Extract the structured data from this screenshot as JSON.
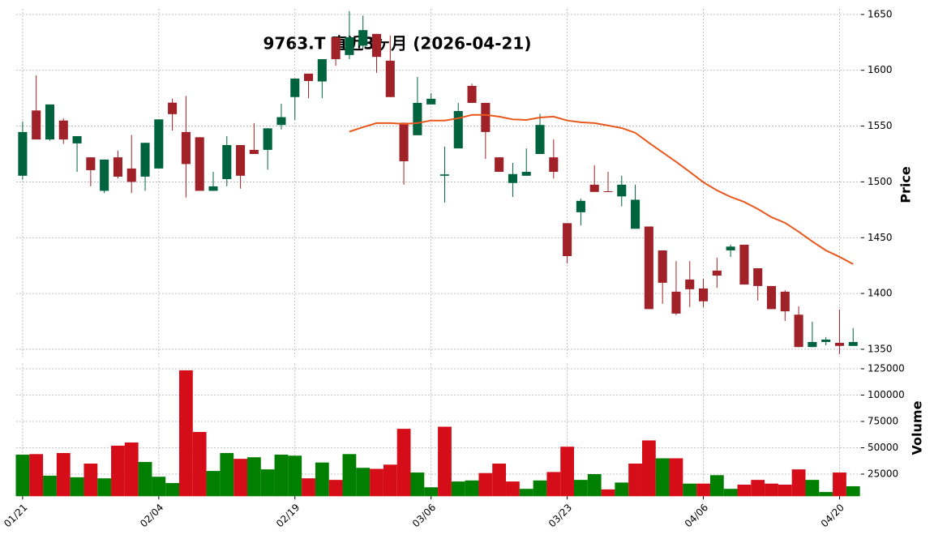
{
  "chart_data": {
    "type": "candlestick",
    "title": "9763.T  直近3ヶ月 (2026-04-21)",
    "categories": [
      "01/21",
      null,
      null,
      null,
      null,
      null,
      null,
      null,
      null,
      null,
      "02/04",
      null,
      null,
      null,
      null,
      null,
      null,
      null,
      null,
      null,
      "02/19",
      null,
      null,
      null,
      null,
      null,
      null,
      null,
      null,
      null,
      "03/06",
      null,
      null,
      null,
      null,
      null,
      null,
      null,
      null,
      null,
      "03/23",
      null,
      null,
      null,
      null,
      null,
      null,
      null,
      null,
      null,
      "04/06",
      null,
      null,
      null,
      null,
      null,
      null,
      null,
      null,
      null,
      "04/20",
      null
    ],
    "open": [
      1505.5,
      1564,
      1538,
      1555,
      1534.5,
      1522,
      1492,
      1522,
      1512,
      1504.7,
      1512,
      1571,
      1544.7,
      1540,
      1492,
      1502.5,
      1533,
      1528.7,
      1528.7,
      1551,
      1576,
      1597,
      1590,
      1629.6,
      1613.7,
      1622,
      1632.6,
      1608.6,
      1553,
      1541.8,
      1569.4,
      1505.5,
      1530,
      1586,
      1570.8,
      1522,
      1499,
      1505.5,
      1525,
      1522,
      1463,
      1472.8,
      1497.5,
      1491.6,
      1487,
      1458,
      1460,
      1438.6,
      1401.6,
      1412.5,
      1404.5,
      1420.5,
      1438.6,
      1443.7,
      1422.6,
      1406.7,
      1401.6,
      1381,
      1352,
      1356.5,
      1355.8,
      1353
    ],
    "high": [
      1554,
      1595.5,
      1569,
      1557,
      1541,
      1522,
      1520,
      1528,
      1542,
      1535,
      1556,
      1574.5,
      1577,
      1540,
      1509,
      1541,
      1533,
      1552.7,
      1548,
      1570,
      1592.6,
      1597,
      1610,
      1629.6,
      1653,
      1649,
      1632.6,
      1631,
      1553,
      1594,
      1579.5,
      1531.6,
      1570.8,
      1588,
      1570.8,
      1522,
      1517,
      1530,
      1561,
      1538,
      1463,
      1485,
      1515,
      1509,
      1505.5,
      1497.5,
      1460,
      1438.6,
      1429,
      1429,
      1413,
      1432,
      1443.7,
      1443.7,
      1422.6,
      1406.7,
      1403,
      1388.5,
      1374.7,
      1361,
      1385.6,
      1369
    ],
    "low": [
      1502,
      1538,
      1537,
      1534,
      1509,
      1496,
      1490,
      1503,
      1490,
      1492,
      1512,
      1546,
      1486,
      1492,
      1492,
      1496,
      1494,
      1525,
      1511,
      1547,
      1555.6,
      1575,
      1575,
      1604,
      1610,
      1619.5,
      1597.7,
      1576,
      1497.5,
      1541.8,
      1569.4,
      1481.5,
      1530,
      1570.8,
      1520.7,
      1509,
      1486.5,
      1505.5,
      1525,
      1503,
      1427,
      1461,
      1491,
      1491,
      1478,
      1458,
      1386,
      1390.7,
      1380.5,
      1387.8,
      1387.8,
      1405,
      1432.8,
      1408,
      1393.6,
      1386,
      1375.4,
      1352,
      1352,
      1353.6,
      1345.6,
      1353
    ],
    "close": [
      1544.7,
      1538,
      1569.4,
      1538,
      1541,
      1510.5,
      1520,
      1504.7,
      1500,
      1535,
      1556,
      1560.7,
      1516,
      1492,
      1496,
      1533,
      1505.5,
      1525,
      1548,
      1558,
      1592.6,
      1590.4,
      1610,
      1610,
      1629.6,
      1636,
      1612,
      1576,
      1518.5,
      1570.8,
      1574.5,
      1506.7,
      1563.5,
      1570.8,
      1544.7,
      1509,
      1507,
      1509,
      1551,
      1509,
      1433.5,
      1483,
      1491,
      1491,
      1497.5,
      1484,
      1386,
      1409.6,
      1382,
      1403.8,
      1393,
      1416,
      1442,
      1408,
      1406.7,
      1386,
      1384,
      1352,
      1356.5,
      1358.7,
      1353,
      1356.5
    ],
    "up_color": "#006340",
    "down_color": "#a02128",
    "moving_average": {
      "color": "#e8581c",
      "values": [
        null,
        null,
        null,
        null,
        null,
        null,
        null,
        null,
        null,
        null,
        null,
        null,
        null,
        null,
        null,
        null,
        null,
        null,
        null,
        null,
        null,
        null,
        null,
        null,
        1545,
        1549,
        1552.7,
        1552.7,
        1552,
        1552.7,
        1555,
        1555,
        1557,
        1560,
        1560,
        1558.5,
        1556,
        1555.5,
        1557.7,
        1558.5,
        1555,
        1553.4,
        1552.7,
        1550.5,
        1548.3,
        1544,
        1535,
        1526.5,
        1518,
        1509,
        1499.6,
        1492.4,
        1486.6,
        1482,
        1475.7,
        1468.4,
        1463.3,
        1455.3,
        1446.6,
        1438.6,
        1432.8,
        1426.3
      ]
    },
    "ylim": [
      1343,
      1655
    ],
    "yticks": [
      1350,
      1400,
      1450,
      1500,
      1550,
      1600,
      1650
    ],
    "ylabel": "Price",
    "volume": {
      "label": "Volume",
      "values": [
        43500,
        44000,
        23500,
        45000,
        22000,
        35000,
        21000,
        52000,
        55000,
        36500,
        22500,
        16500,
        123500,
        65000,
        28000,
        45000,
        39500,
        41000,
        29500,
        43500,
        42500,
        21000,
        36000,
        19500,
        44000,
        31000,
        30000,
        34000,
        68000,
        26500,
        12500,
        70000,
        18000,
        19000,
        26000,
        35000,
        18000,
        11000,
        19000,
        27000,
        51000,
        19500,
        25000,
        10500,
        17000,
        35000,
        57000,
        40000,
        40000,
        16000,
        16000,
        24000,
        11000,
        15000,
        19500,
        16000,
        15000,
        29500,
        19500,
        8000,
        26500,
        13500
      ],
      "colors": [
        "#007f00",
        "#d50d18",
        "#007f00",
        "#d50d18",
        "#007f00",
        "#d50d18",
        "#007f00",
        "#d50d18",
        "#d50d18",
        "#007f00",
        "#007f00",
        "#007f00",
        "#d50d18",
        "#d50d18",
        "#007f00",
        "#007f00",
        "#d50d18",
        "#007f00",
        "#007f00",
        "#007f00",
        "#007f00",
        "#d50d18",
        "#007f00",
        "#d50d18",
        "#007f00",
        "#007f00",
        "#d50d18",
        "#d50d18",
        "#d50d18",
        "#007f00",
        "#007f00",
        "#d50d18",
        "#007f00",
        "#007f00",
        "#d50d18",
        "#d50d18",
        "#d50d18",
        "#007f00",
        "#007f00",
        "#d50d18",
        "#d50d18",
        "#007f00",
        "#007f00",
        "#d50d18",
        "#007f00",
        "#d50d18",
        "#d50d18",
        "#007f00",
        "#d50d18",
        "#007f00",
        "#d50d18",
        "#007f00",
        "#007f00",
        "#d50d18",
        "#d50d18",
        "#d50d18",
        "#d50d18",
        "#d50d18",
        "#007f00",
        "#007f00",
        "#d50d18",
        "#007f00"
      ],
      "ylim": [
        4000,
        130000
      ],
      "yticks": [
        25000,
        50000,
        75000,
        100000,
        125000
      ]
    },
    "grid": true
  }
}
